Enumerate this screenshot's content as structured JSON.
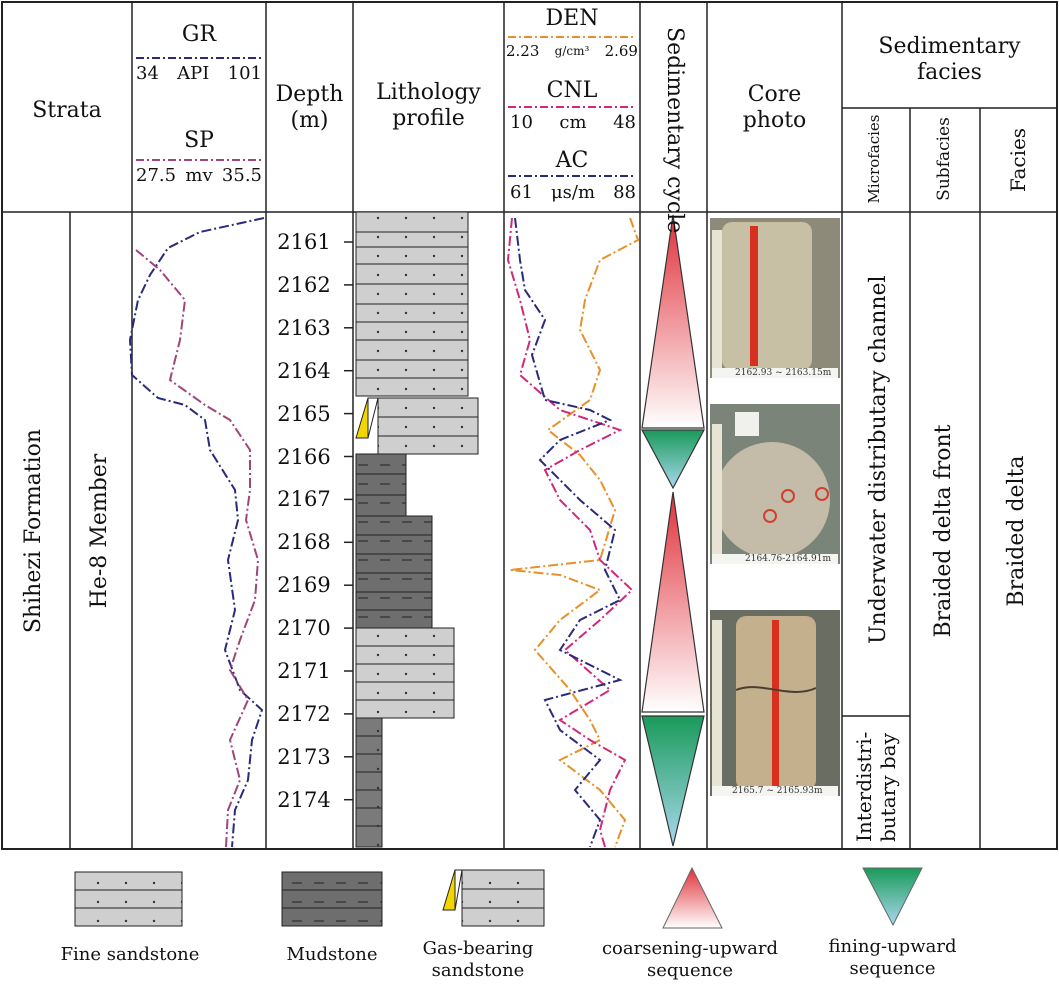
{
  "header": {
    "strata": "Strata",
    "gr": {
      "name": "GR",
      "min": "34",
      "unit": "API",
      "max": "101"
    },
    "sp": {
      "name": "SP",
      "min": "27.5",
      "unit": "mv",
      "max": "35.5"
    },
    "depth": [
      "Depth",
      "(m)"
    ],
    "lithology": [
      "Lithology",
      "profile"
    ],
    "den": {
      "name": "DEN",
      "min": "2.23",
      "unit": "g/cm³",
      "max": "2.69"
    },
    "cnl": {
      "name": "CNL",
      "min": "10",
      "unit": "cm",
      "max": "48"
    },
    "ac": {
      "name": "AC",
      "min": "61",
      "unit": "μs/m",
      "max": "88"
    },
    "cycle": "Sedimentary cycle",
    "core": [
      "Core",
      "photo"
    ],
    "facies_title": [
      "Sedimentary",
      "facies"
    ],
    "microfacies": "Microfacies",
    "subfacies": "Subfacies",
    "facies": "Facies"
  },
  "body": {
    "formation": "Shihezi Formation",
    "member": "He-8 Member",
    "depths": [
      "2161",
      "2162",
      "2163",
      "2164",
      "2165",
      "2166",
      "2167",
      "2168",
      "2169",
      "2170",
      "2171",
      "2172",
      "2173",
      "2174"
    ],
    "microfacies_upper": "Underwater distributary channel",
    "microfacies_lower": [
      "Interdistri-",
      "butary bay"
    ],
    "subfacies": "Braided delta front",
    "facies": "Braided delta",
    "photo_captions": [
      "2162.93 ~ 2163.15m",
      "2164.76-2164.91m",
      "2165.7 ~ 2165.93m"
    ]
  },
  "legend": {
    "fine_sandstone": "Fine sandstone",
    "mudstone": "Mudstone",
    "gas_sandstone": [
      "Gas-bearing",
      "sandstone"
    ],
    "coarsening": [
      "coarsening-upward",
      "sequence"
    ],
    "fining": [
      "fining-upward",
      "sequence"
    ]
  },
  "colors": {
    "gr": "#2a2a7a",
    "sp": "#a0457a",
    "den": "#e8902a",
    "cnl": "#d0287a",
    "ac": "#2a2a7a",
    "sand": "#cfcfcf",
    "mud": "#6e6e6e",
    "gas": "#f2d600",
    "red_tri": "#e0303a",
    "green_tri": "#1a9a5a",
    "blue_tri": "#9ad0e8"
  }
}
